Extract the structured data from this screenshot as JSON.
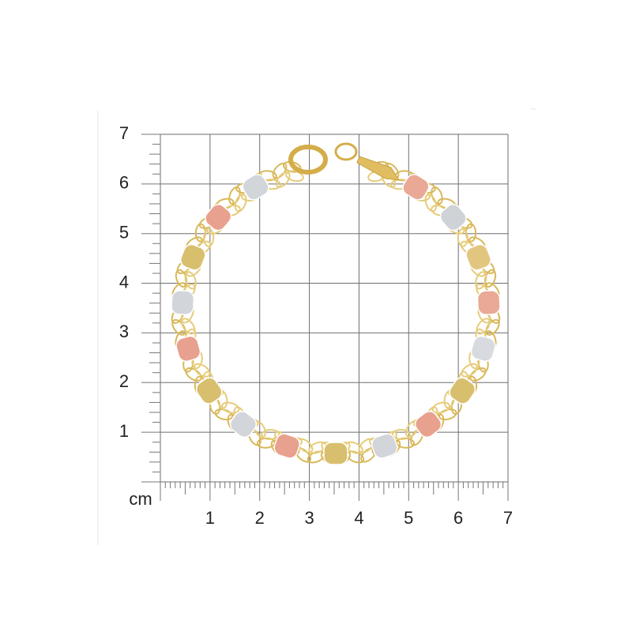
{
  "ruler": {
    "unit": "cm",
    "x_labels": [
      "1",
      "2",
      "3",
      "4",
      "5",
      "6",
      "7"
    ],
    "y_labels": [
      "1",
      "2",
      "3",
      "4",
      "5",
      "6",
      "7"
    ]
  }
}
